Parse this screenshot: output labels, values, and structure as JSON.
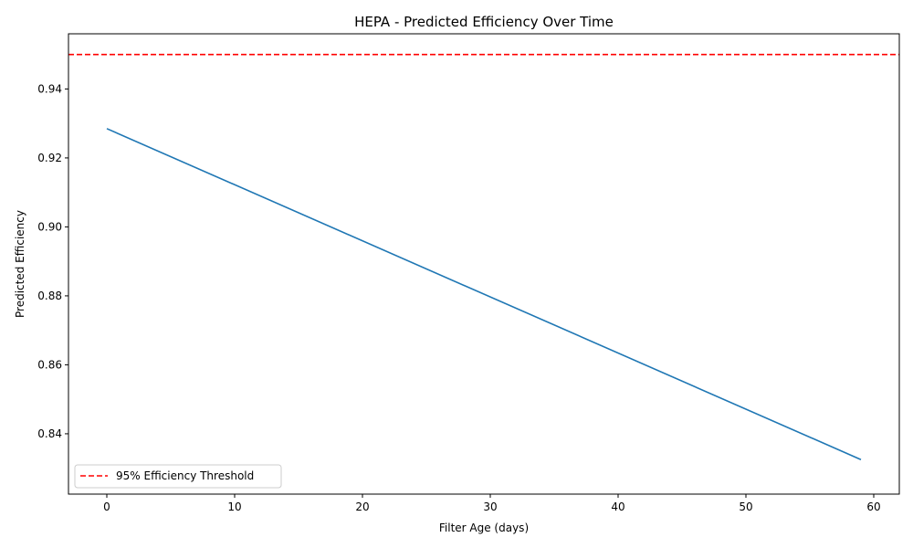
{
  "chart_data": {
    "type": "line",
    "title": "HEPA - Predicted Efficiency Over Time",
    "xlabel": "Filter Age (days)",
    "ylabel": "Predicted Efficiency",
    "xlim": [
      -3,
      62
    ],
    "ylim": [
      0.8225,
      0.956
    ],
    "xticks": [
      0,
      10,
      20,
      30,
      40,
      50,
      60
    ],
    "yticks": [
      0.84,
      0.86,
      0.88,
      0.9,
      0.92,
      0.94
    ],
    "grid": false,
    "legend_position": "lower-left",
    "series": [
      {
        "name": "",
        "color": "#1f77b4",
        "style": "solid",
        "x": [
          0,
          59
        ],
        "y": [
          0.9285,
          0.8325
        ]
      }
    ],
    "reference_lines": [
      {
        "name": "95% Efficiency Threshold",
        "orientation": "horizontal",
        "value": 0.95,
        "color": "#ff0000",
        "style": "dashed"
      }
    ]
  }
}
